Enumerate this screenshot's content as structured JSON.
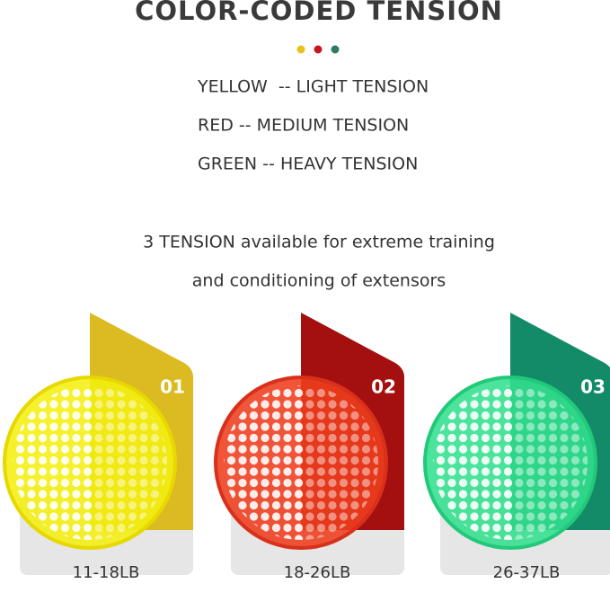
{
  "title": "COLOR-CODED TENSION",
  "legend": [
    "YELLOW  -- LIGHT TENSION",
    "RED -- MEDIUM TENSION",
    "GREEN -- HEAVY TENSION"
  ],
  "description": [
    "3 TENSION available for extreme training",
    "and conditioning of extensors"
  ],
  "products": [
    {
      "number": "01",
      "label": "11-18LB"
    },
    {
      "number": "02",
      "label": "18-26LB"
    },
    {
      "number": "03",
      "label": "26-37LB"
    }
  ]
}
